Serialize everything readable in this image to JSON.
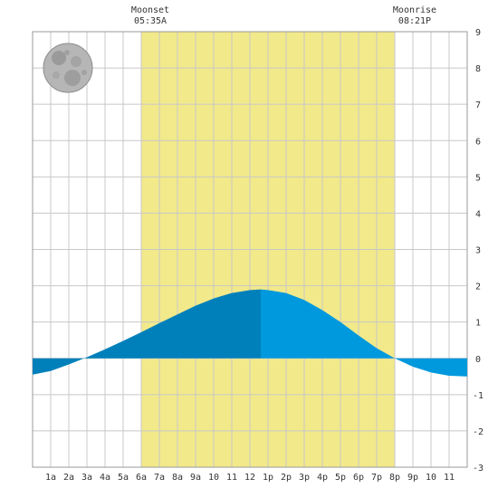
{
  "moon_events": {
    "moonset": {
      "label": "Moonset",
      "time": "05:35A"
    },
    "moonrise": {
      "label": "Moonrise",
      "time": "08:21P"
    }
  },
  "moon_icon": "full-moon-icon",
  "colors": {
    "daylight": "#f2e98a",
    "tide_dark": "#0080bb",
    "tide_light": "#0099dd",
    "grid": "#c8c8c8",
    "background": "#ffffff"
  },
  "chart_data": {
    "type": "area",
    "title": "",
    "xlabel": "",
    "ylabel": "",
    "x_tick_labels": [
      "1a",
      "2a",
      "3a",
      "4a",
      "5a",
      "6a",
      "7a",
      "8a",
      "9a",
      "10",
      "11",
      "12",
      "1p",
      "2p",
      "3p",
      "4p",
      "5p",
      "6p",
      "7p",
      "8p",
      "9p",
      "10",
      "11"
    ],
    "x_tick_hours": [
      1,
      2,
      3,
      4,
      5,
      6,
      7,
      8,
      9,
      10,
      11,
      12,
      13,
      14,
      15,
      16,
      17,
      18,
      19,
      20,
      21,
      22,
      23
    ],
    "xlim_hours": [
      0,
      24
    ],
    "ylim": [
      -3,
      9
    ],
    "y_ticks": [
      9,
      8,
      7,
      6,
      5,
      4,
      3,
      2,
      1,
      0,
      -1,
      -2,
      -3
    ],
    "grid": true,
    "daylight_hours": [
      6.0,
      20.0
    ],
    "high_tide_hour": 12.6,
    "series": [
      {
        "x": [
          0,
          1,
          2,
          3,
          4,
          5,
          6,
          7,
          8,
          9,
          10,
          11,
          12,
          12.6,
          13,
          14,
          15,
          16,
          17,
          18,
          19,
          20,
          21,
          22,
          23,
          24
        ],
        "values": [
          -0.45,
          -0.35,
          -0.17,
          0.03,
          0.25,
          0.48,
          0.72,
          0.97,
          1.21,
          1.45,
          1.65,
          1.8,
          1.88,
          1.9,
          1.88,
          1.8,
          1.61,
          1.33,
          1.0,
          0.63,
          0.28,
          0.0,
          -0.23,
          -0.39,
          -0.48,
          -0.5
        ]
      }
    ]
  }
}
